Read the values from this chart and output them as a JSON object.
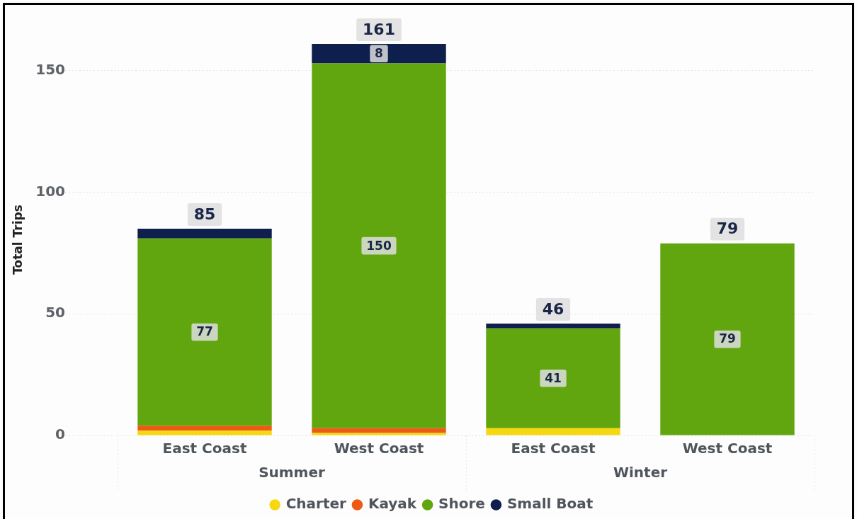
{
  "chart_data": {
    "type": "bar",
    "stacked": true,
    "ylabel": "Total Trips",
    "categories": [
      "East Coast",
      "West Coast",
      "East Coast",
      "West Coast"
    ],
    "annotations": [
      "Summer",
      "Winter"
    ],
    "series": [
      {
        "name": "Charter",
        "color": "#f5d80f",
        "values": [
          2,
          1,
          3,
          null
        ]
      },
      {
        "name": "Kayak",
        "color": "#ec5b13",
        "values": [
          2,
          2,
          null,
          null
        ]
      },
      {
        "name": "Shore",
        "color": "#62a60f",
        "values": [
          77,
          150,
          41,
          79
        ],
        "value_labels": [
          "77",
          "150",
          "41",
          "79"
        ]
      },
      {
        "name": "Small Boat",
        "color": "#0e1e4d",
        "values": [
          4,
          8,
          2,
          null
        ],
        "value_labels": [
          null,
          "8",
          null,
          null
        ]
      }
    ],
    "totals": [
      "85",
      "161",
      "46",
      "79"
    ],
    "ylim": [
      0,
      161
    ],
    "yticks": [
      0,
      50,
      100,
      150
    ],
    "grid": "y",
    "legend": "bottom"
  }
}
